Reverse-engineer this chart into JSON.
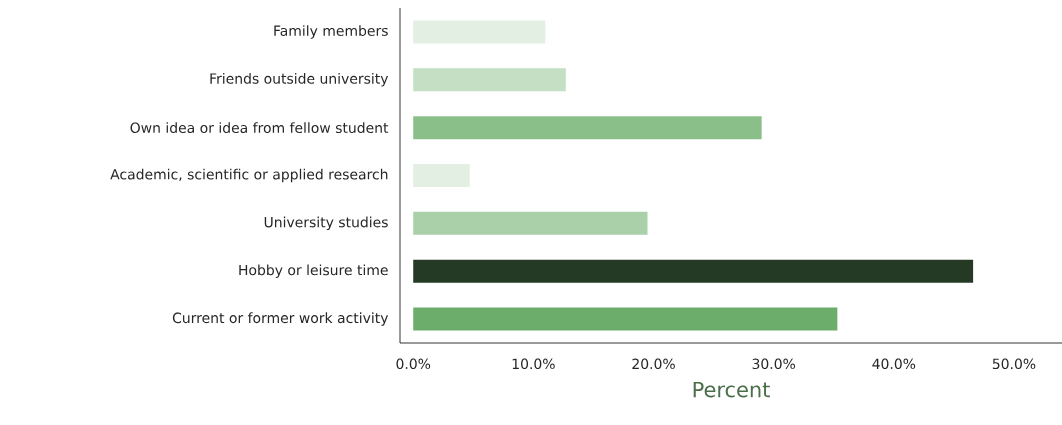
{
  "chart_data": {
    "type": "bar",
    "orientation": "horizontal",
    "xlabel": "Percent",
    "categories": [
      "Family members",
      "Friends outside university",
      "Own idea or idea from fellow student",
      "Academic, scientific or applied research",
      "University studies",
      "Hobby or leisure time",
      "Current or former work activity"
    ],
    "values": [
      11.0,
      12.7,
      29.0,
      4.7,
      19.5,
      46.6,
      35.3
    ],
    "colors": [
      "#e3efe3",
      "#c4dfc4",
      "#8abf8a",
      "#e3efe3",
      "#a9d0a9",
      "#253a25",
      "#6cad6c"
    ],
    "xlim": [
      -1.1,
      54
    ],
    "xticks": [
      {
        "value": 0,
        "label": "0.0%"
      },
      {
        "value": 10,
        "label": "10.0%"
      },
      {
        "value": 20,
        "label": "20.0%"
      },
      {
        "value": 30,
        "label": "30.0%"
      },
      {
        "value": 40,
        "label": "40.0%"
      },
      {
        "value": 50,
        "label": "50.0%"
      }
    ]
  }
}
